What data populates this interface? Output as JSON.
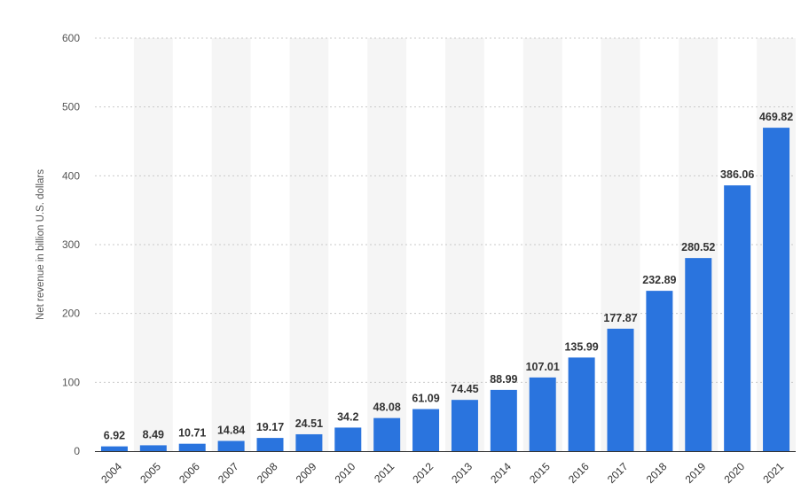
{
  "chart_data": {
    "type": "bar",
    "categories": [
      "2004",
      "2005",
      "2006",
      "2007",
      "2008",
      "2009",
      "2010",
      "2011",
      "2012",
      "2013",
      "2014",
      "2015",
      "2016",
      "2017",
      "2018",
      "2019",
      "2020",
      "2021"
    ],
    "values": [
      6.92,
      8.49,
      10.71,
      14.84,
      19.17,
      24.51,
      34.2,
      48.08,
      61.09,
      74.45,
      88.99,
      107.01,
      135.99,
      177.87,
      232.89,
      280.52,
      386.06,
      469.82
    ],
    "value_labels": [
      "6.92",
      "8.49",
      "10.71",
      "14.84",
      "19.17",
      "24.51",
      "34.2",
      "48.08",
      "61.09",
      "74.45",
      "88.99",
      "107.01",
      "135.99",
      "177.87",
      "232.89",
      "280.52",
      "386.06",
      "469.82"
    ],
    "title": "",
    "xlabel": "",
    "ylabel": "Net revenue in billion U.S. dollars",
    "ylim": [
      0,
      600
    ],
    "yticks": [
      0,
      100,
      200,
      300,
      400,
      500,
      600
    ],
    "grid": true,
    "legend": "none",
    "bar_color": "#2a74de",
    "band_color": "#f5f5f5"
  }
}
